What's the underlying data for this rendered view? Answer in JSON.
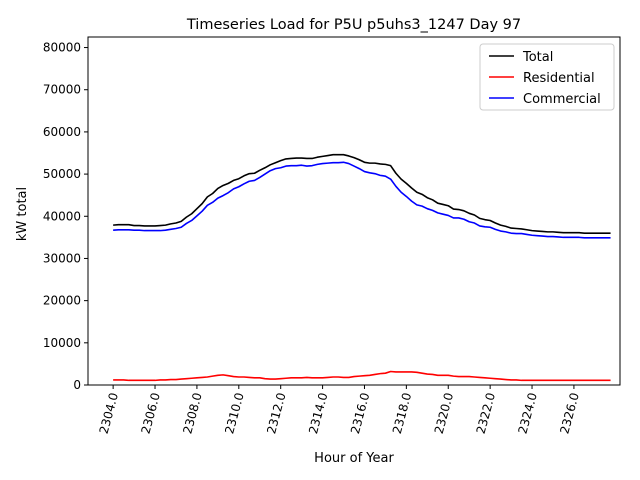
{
  "chart_data": {
    "type": "line",
    "title": "Timeseries Load for P5U p5uhs3_1247  Day 97",
    "xlabel": "Hour of Year",
    "ylabel": "kW total",
    "xlim": [
      2302.8,
      2328.2
    ],
    "ylim": [
      0,
      82500
    ],
    "xticks": [
      2304,
      2306,
      2308,
      2310,
      2312,
      2314,
      2316,
      2318,
      2320,
      2322,
      2324,
      2326
    ],
    "xtick_labels": [
      "2304.0",
      "2306.0",
      "2308.0",
      "2310.0",
      "2312.0",
      "2314.0",
      "2316.0",
      "2318.0",
      "2320.0",
      "2322.0",
      "2324.0",
      "2326.0"
    ],
    "yticks": [
      0,
      10000,
      20000,
      30000,
      40000,
      50000,
      60000,
      70000,
      80000
    ],
    "ytick_labels": [
      "0",
      "10000",
      "20000",
      "30000",
      "40000",
      "50000",
      "60000",
      "70000",
      "80000"
    ],
    "legend_position": "top-right",
    "grid": false,
    "x": [
      2304.0,
      2304.25,
      2304.5,
      2304.75,
      2305.0,
      2305.25,
      2305.5,
      2305.75,
      2306.0,
      2306.25,
      2306.5,
      2306.75,
      2307.0,
      2307.25,
      2307.5,
      2307.75,
      2308.0,
      2308.25,
      2308.5,
      2308.75,
      2309.0,
      2309.25,
      2309.5,
      2309.75,
      2310.0,
      2310.25,
      2310.5,
      2310.75,
      2311.0,
      2311.25,
      2311.5,
      2311.75,
      2312.0,
      2312.25,
      2312.5,
      2312.75,
      2313.0,
      2313.25,
      2313.5,
      2313.75,
      2314.0,
      2314.25,
      2314.5,
      2314.75,
      2315.0,
      2315.25,
      2315.5,
      2315.75,
      2316.0,
      2316.25,
      2316.5,
      2316.75,
      2317.0,
      2317.25,
      2317.5,
      2317.75,
      2318.0,
      2318.25,
      2318.5,
      2318.75,
      2319.0,
      2319.25,
      2319.5,
      2319.75,
      2320.0,
      2320.25,
      2320.5,
      2320.75,
      2321.0,
      2321.25,
      2321.5,
      2321.75,
      2322.0,
      2322.25,
      2322.5,
      2322.75,
      2323.0,
      2323.25,
      2323.5,
      2323.75,
      2324.0,
      2324.25,
      2324.5,
      2324.75,
      2325.0,
      2325.25,
      2325.5,
      2325.75,
      2326.0,
      2326.25,
      2326.5,
      2326.75,
      2327.0,
      2327.25,
      2327.5,
      2327.75
    ],
    "series": [
      {
        "name": "Total",
        "color": "#000000",
        "values": [
          37900,
          38000,
          38000,
          38000,
          37800,
          37800,
          37700,
          37700,
          37700,
          37800,
          37900,
          38200,
          38400,
          38800,
          39800,
          40600,
          41800,
          43000,
          44600,
          45400,
          46600,
          47300,
          47800,
          48500,
          48900,
          49600,
          50100,
          50200,
          50900,
          51500,
          52200,
          52700,
          53200,
          53600,
          53700,
          53800,
          53800,
          53700,
          53700,
          54000,
          54200,
          54400,
          54600,
          54600,
          54600,
          54300,
          53900,
          53400,
          52800,
          52600,
          52600,
          52400,
          52300,
          52000,
          50200,
          48800,
          47800,
          46700,
          45700,
          45200,
          44400,
          43900,
          43100,
          42800,
          42500,
          41700,
          41600,
          41300,
          40700,
          40300,
          39500,
          39200,
          39000,
          38400,
          37900,
          37600,
          37200,
          37100,
          37000,
          36800,
          36600,
          36500,
          36400,
          36300,
          36300,
          36200,
          36100,
          36100,
          36100,
          36100,
          36000,
          36000,
          36000,
          36000,
          36000,
          36000
        ]
      },
      {
        "name": "Residential",
        "color": "#ff0000",
        "values": [
          1200,
          1200,
          1200,
          1100,
          1100,
          1100,
          1100,
          1100,
          1100,
          1200,
          1200,
          1300,
          1300,
          1400,
          1500,
          1600,
          1700,
          1800,
          1900,
          2100,
          2300,
          2400,
          2200,
          2000,
          1900,
          1900,
          1800,
          1700,
          1700,
          1500,
          1400,
          1400,
          1500,
          1600,
          1700,
          1700,
          1700,
          1800,
          1700,
          1700,
          1700,
          1800,
          1900,
          1900,
          1800,
          1800,
          2000,
          2100,
          2200,
          2300,
          2500,
          2700,
          2800,
          3200,
          3100,
          3100,
          3100,
          3100,
          3000,
          2800,
          2600,
          2500,
          2300,
          2300,
          2300,
          2100,
          2000,
          2000,
          2000,
          1900,
          1800,
          1700,
          1600,
          1500,
          1400,
          1300,
          1200,
          1200,
          1100,
          1100,
          1100,
          1100,
          1100,
          1100,
          1100,
          1100,
          1100,
          1100,
          1100,
          1100,
          1100,
          1100,
          1100,
          1100,
          1100,
          1100
        ]
      },
      {
        "name": "Commercial",
        "color": "#0000ff",
        "values": [
          36700,
          36800,
          36800,
          36800,
          36700,
          36700,
          36600,
          36600,
          36600,
          36600,
          36700,
          36900,
          37100,
          37400,
          38300,
          39000,
          40100,
          41200,
          42600,
          43300,
          44300,
          44900,
          45600,
          46500,
          47000,
          47700,
          48300,
          48500,
          49200,
          50000,
          50800,
          51300,
          51500,
          51900,
          52000,
          52000,
          52100,
          51900,
          52000,
          52300,
          52500,
          52600,
          52700,
          52700,
          52800,
          52500,
          51900,
          51300,
          50600,
          50300,
          50100,
          49700,
          49500,
          48800,
          47100,
          45700,
          44700,
          43600,
          42700,
          42400,
          41800,
          41400,
          40800,
          40500,
          40200,
          39600,
          39600,
          39300,
          38700,
          38400,
          37700,
          37500,
          37400,
          36900,
          36500,
          36300,
          36000,
          35900,
          35900,
          35700,
          35500,
          35400,
          35300,
          35200,
          35200,
          35100,
          35000,
          35000,
          35000,
          35000,
          34900,
          34900,
          34900,
          34900,
          34900,
          34900
        ]
      }
    ]
  }
}
